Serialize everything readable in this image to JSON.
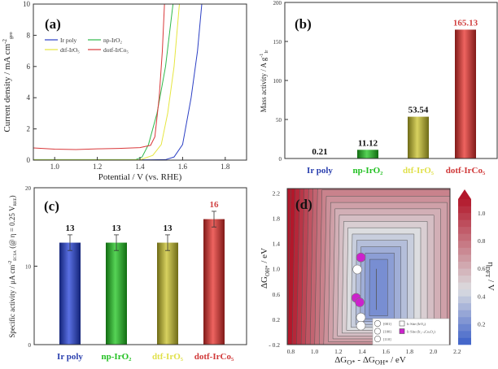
{
  "chart_data": [
    {
      "panel": "(a)",
      "type": "line",
      "xlabel": "Potential / V (vs. RHE)",
      "ylabel": "Current density / mA cm",
      "ylabel_sup": "-2",
      "ylabel_sub": "geo",
      "xlim": [
        0.9,
        1.9
      ],
      "ylim": [
        0,
        10
      ],
      "xticks": [
        1.0,
        1.2,
        1.4,
        1.6,
        1.8
      ],
      "yticks": [
        0,
        2,
        4,
        6,
        8,
        10
      ],
      "legend_position": "top-left",
      "series": [
        {
          "name": "Ir poly",
          "color": "#2b3fc4",
          "x": [
            0.9,
            1.2,
            1.45,
            1.52,
            1.56,
            1.6,
            1.64,
            1.67,
            1.69
          ],
          "y": [
            0.02,
            0.02,
            0.02,
            0.03,
            0.2,
            1.0,
            4.0,
            7.0,
            10.0
          ]
        },
        {
          "name": "np-IrO₂",
          "color": "#2fb84a",
          "x": [
            0.9,
            1.2,
            1.38,
            1.41,
            1.44,
            1.48,
            1.52,
            1.555
          ],
          "y": [
            0.03,
            0.03,
            0.03,
            0.2,
            1.0,
            3.0,
            6.0,
            10.0
          ]
        },
        {
          "name": "dtf-IrO₅",
          "color": "#e6e640",
          "x": [
            0.9,
            1.2,
            1.4,
            1.46,
            1.5,
            1.53,
            1.56,
            1.585
          ],
          "y": [
            0.02,
            0.02,
            0.02,
            0.3,
            1.0,
            3.0,
            6.0,
            10.0
          ]
        },
        {
          "name": "dotf-IrCo₅",
          "color": "#d9383a",
          "x": [
            0.9,
            1.0,
            1.1,
            1.2,
            1.3,
            1.4,
            1.45,
            1.47,
            1.49,
            1.505,
            1.515
          ],
          "y": [
            0.78,
            0.7,
            0.68,
            0.72,
            0.75,
            0.8,
            0.95,
            1.5,
            4.0,
            7.0,
            10.0
          ]
        }
      ]
    },
    {
      "panel": "(b)",
      "type": "bar",
      "ylabel": "Mass activity / A g",
      "ylabel_sup": "-1",
      "ylabel_sub": "Ir",
      "ylim": [
        0,
        200
      ],
      "yticks": [
        0,
        50,
        100,
        150,
        200
      ],
      "categories": [
        "Ir poly",
        "np-IrO₂",
        "dtf-IrO₅",
        "dotf-IrCo₅"
      ],
      "values": [
        0.21,
        11.12,
        53.54,
        165.13
      ],
      "value_labels": [
        "0.21",
        "11.12",
        "53.54",
        "165.13"
      ],
      "value_label_colors": [
        "#111111",
        "#111111",
        "#111111",
        "#d04040"
      ],
      "bar_colors": [
        "#2340d8",
        "#1ec41e",
        "#c9c22a",
        "#e8302b"
      ],
      "category_colors": [
        "#2a3fae",
        "#22c022",
        "#e0e04a",
        "#d03838"
      ]
    },
    {
      "panel": "(c)",
      "type": "bar",
      "ylabel": "Specific activity / μA cm",
      "ylabel_sup": "-2",
      "ylabel_sub": "ECSA",
      "ylabel_tail": " (@ η = 0.25 V",
      "ylabel_tail_sub": "RHE",
      "ylabel_end": ")",
      "ylim": [
        0,
        20
      ],
      "yticks": [
        0,
        10,
        20
      ],
      "categories": [
        "Ir poly",
        "np-IrO₂",
        "dtf-IrO₅",
        "dotf-IrCo₅"
      ],
      "values": [
        13,
        13,
        13,
        16
      ],
      "errors": [
        1,
        1,
        1,
        1
      ],
      "value_labels": [
        "13",
        "13",
        "13",
        "16"
      ],
      "value_label_colors": [
        "#111111",
        "#111111",
        "#111111",
        "#d04040"
      ],
      "bar_colors": [
        "#2340d8",
        "#1ec41e",
        "#c9c22a",
        "#e8302b"
      ],
      "category_colors": [
        "#2a3fae",
        "#22c022",
        "#e0e04a",
        "#d03838"
      ]
    },
    {
      "panel": "(d)",
      "type": "heatmap",
      "xlabel": "ΔG",
      "xlabel_sub1": "O*",
      "xlabel_mid": " - ΔG",
      "xlabel_sub2": "OH*",
      "xlabel_end": " / eV",
      "ylabel": "ΔG",
      "ylabel_sub": "OH*",
      "ylabel_end": " / eV",
      "colorbar_label": "η",
      "colorbar_label_sub": "DFT",
      "colorbar_label_end": " / V",
      "xlim": [
        0.77,
        2.14
      ],
      "ylim": [
        -0.2,
        2.27
      ],
      "xticks": [
        0.8,
        1.0,
        1.2,
        1.4,
        1.6,
        1.8,
        2.0,
        2.2
      ],
      "yticks": [
        -0.2,
        0.2,
        0.6,
        1.0,
        1.4,
        1.8,
        2.2
      ],
      "colorbar_range": [
        0.05,
        1.1
      ],
      "colorbar_ticks": [
        0.2,
        0.4,
        0.6,
        0.8,
        1.0
      ],
      "colormap": [
        "#3b5fc9",
        "#dcdde0",
        "#b2182b"
      ],
      "points": [
        {
          "x": 1.39,
          "y": 1.18,
          "type": "Ir1-xCoxO2",
          "color": "#cc22cc"
        },
        {
          "x": 1.36,
          "y": 0.99,
          "type": "IrO2",
          "color": "#ffffff"
        },
        {
          "x": 1.35,
          "y": 0.54,
          "type": "Ir1-xCoxO2",
          "color": "#cc22cc"
        },
        {
          "x": 1.38,
          "y": 0.47,
          "type": "Ir1-xCoxO2",
          "color": "#cc22cc"
        },
        {
          "x": 1.39,
          "y": 0.23,
          "type": "IrO2",
          "color": "#ffffff"
        },
        {
          "x": 1.39,
          "y": 0.1,
          "type": "IrO2",
          "color": "#ffffff"
        }
      ],
      "legend": {
        "facets": [
          "[001]",
          "[100]",
          "[110]"
        ],
        "sites": [
          "Ir Site (IrO₂)",
          "Ir Site (Ir₁₋ₓCoₓO₂)"
        ]
      }
    }
  ]
}
